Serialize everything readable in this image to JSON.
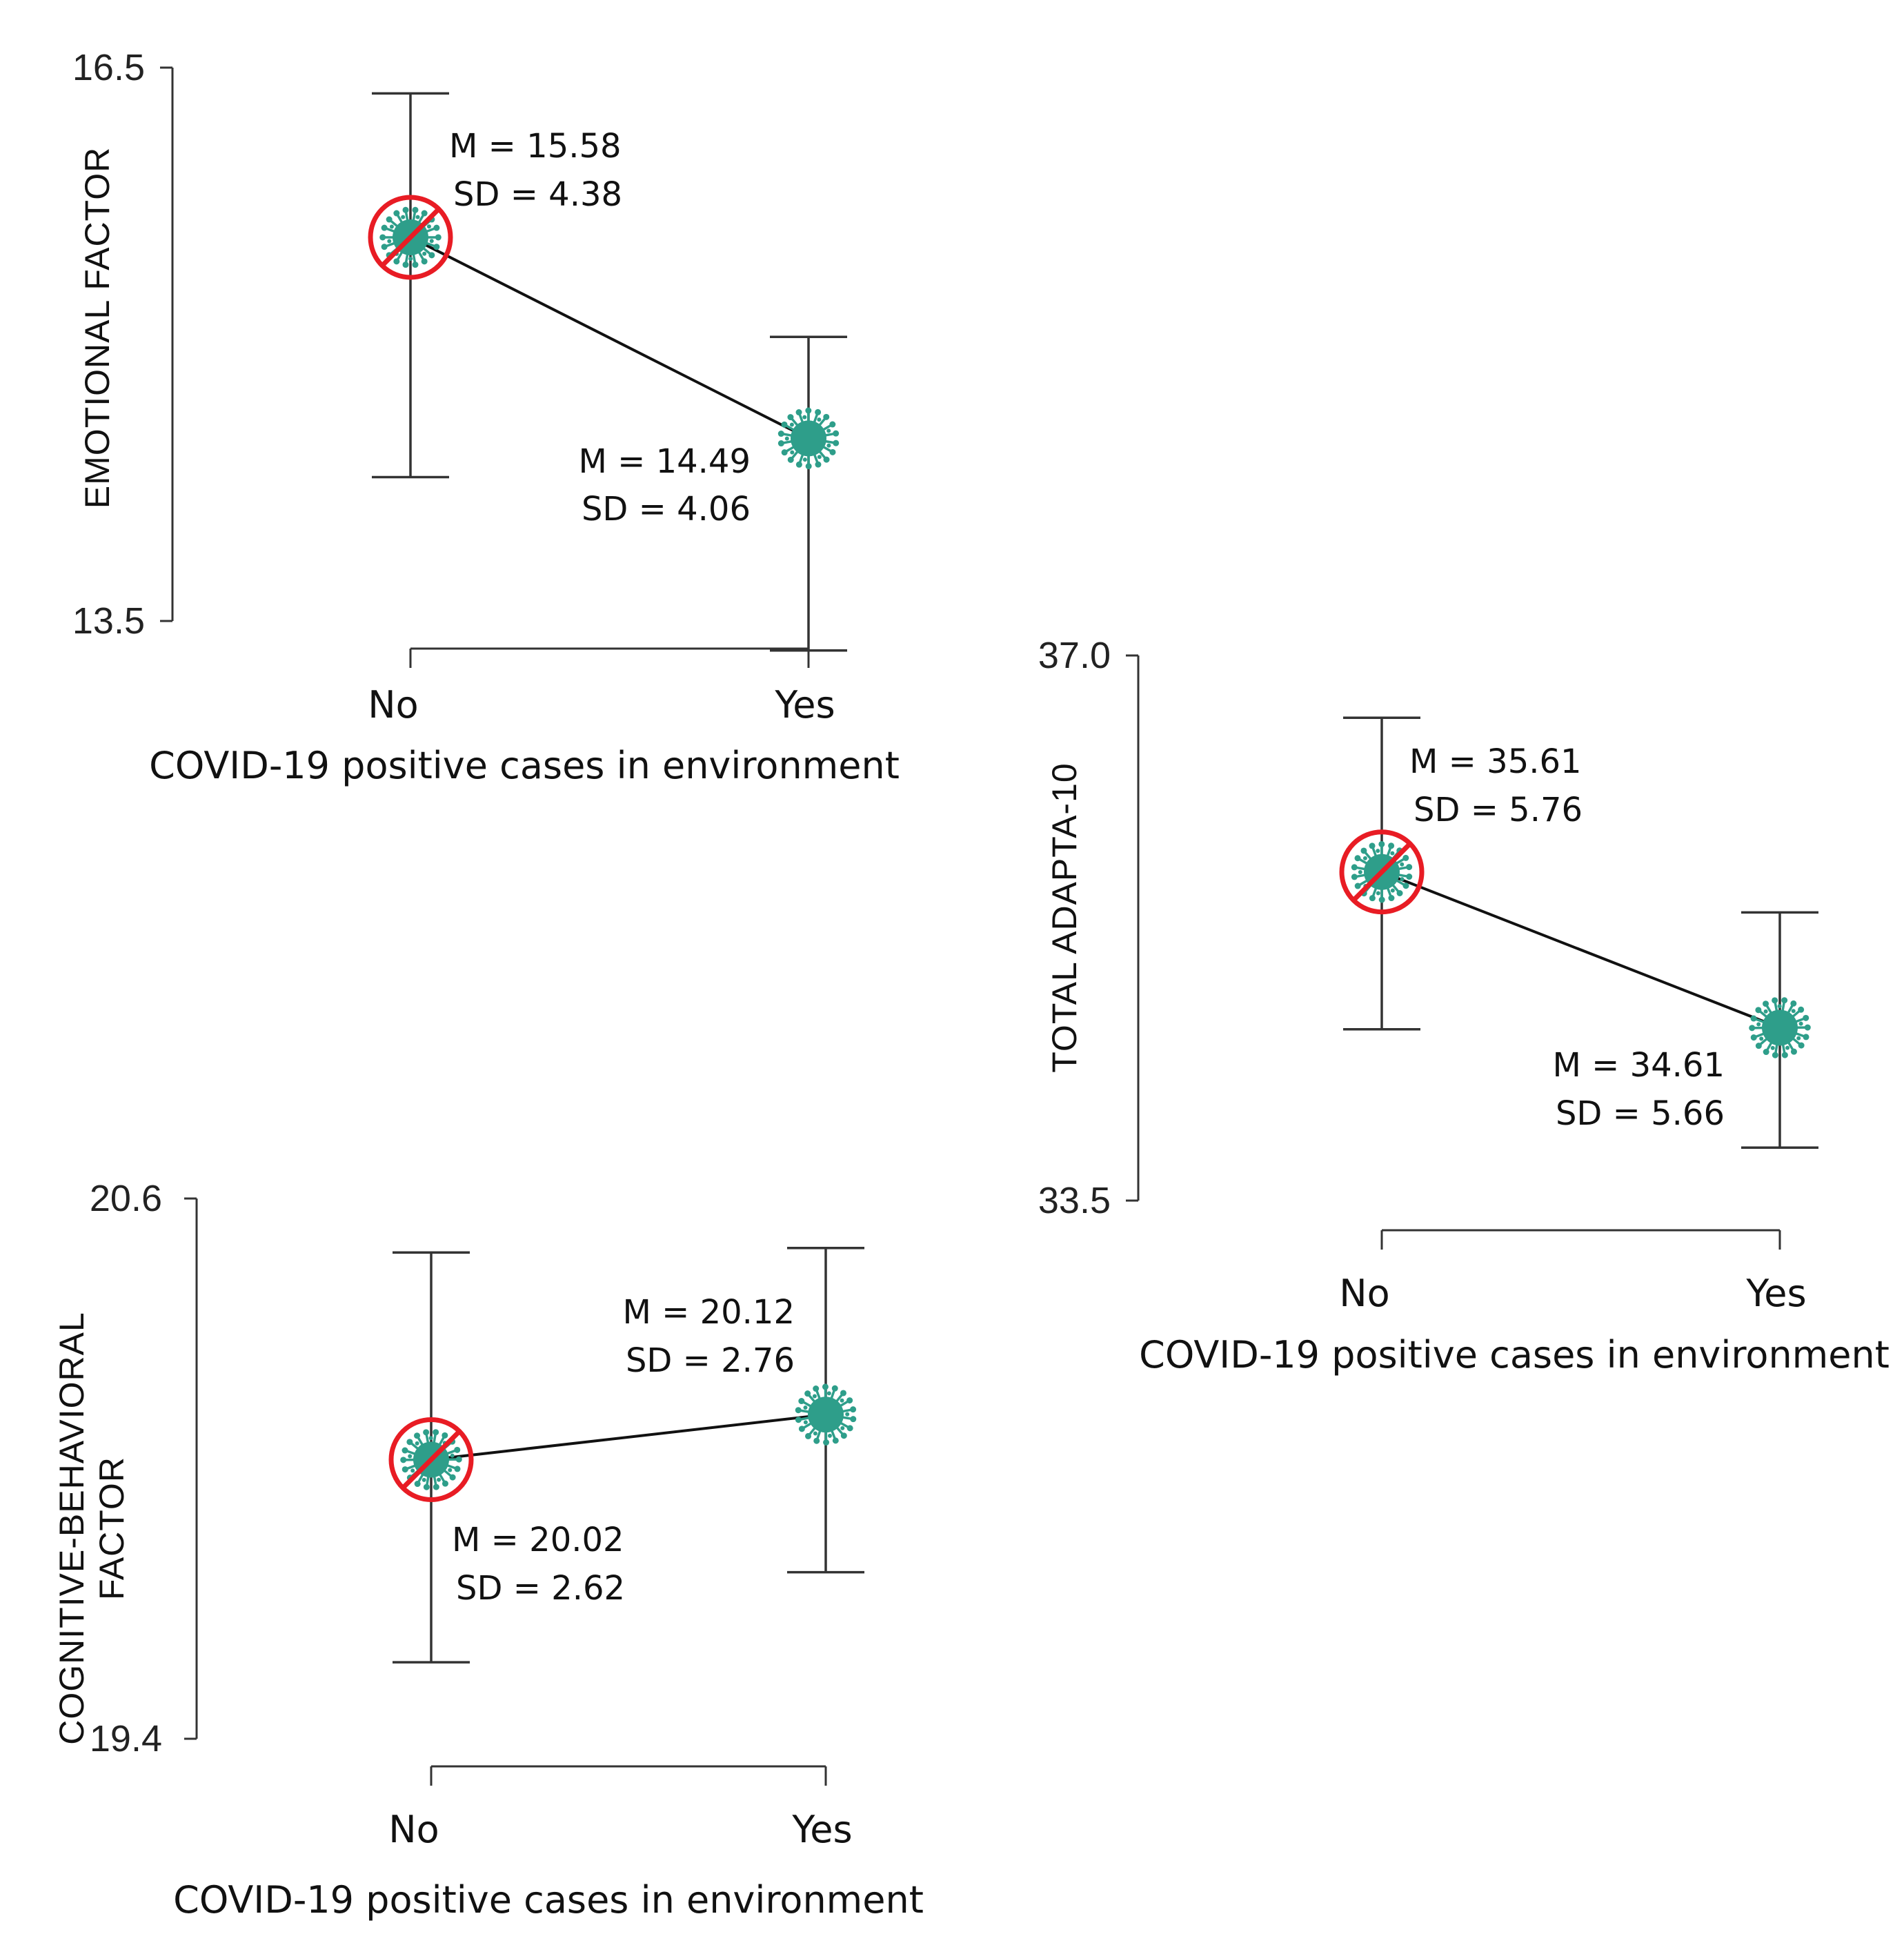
{
  "chart_data": [
    {
      "type": "line",
      "id": "emotional",
      "ylabel": [
        "EMOTIONAL FACTOR"
      ],
      "xlabel": "COVID-19 positive cases in environment",
      "categories": [
        "No",
        "Yes"
      ],
      "ylim": [
        13.5,
        16.5
      ],
      "ytick_labels": [
        "13.5",
        "16.5"
      ],
      "means": [
        15.58,
        14.49
      ],
      "error_bar_lower": [
        14.28,
        13.34
      ],
      "error_bar_upper": [
        16.36,
        15.04
      ],
      "point_labels": [
        {
          "m": "M = 15.58",
          "sd": "SD = 4.38"
        },
        {
          "m": "M = 14.49",
          "sd": "SD = 4.06"
        }
      ],
      "markers": [
        "crossed-virus-icon",
        "virus-icon"
      ]
    },
    {
      "type": "line",
      "id": "total",
      "ylabel": [
        "TOTAL  ADAPTA-10"
      ],
      "xlabel": "COVID-19 positive cases in environment",
      "categories": [
        "No",
        "Yes"
      ],
      "ylim": [
        33.5,
        37.0
      ],
      "ytick_labels": [
        "33.5",
        "37.0"
      ],
      "means": [
        35.61,
        34.61
      ],
      "error_bar_lower": [
        34.6,
        33.84
      ],
      "error_bar_upper": [
        36.6,
        35.35
      ],
      "point_labels": [
        {
          "m": "M = 35.61",
          "sd": "SD = 5.76"
        },
        {
          "m": "M = 34.61",
          "sd": "SD = 5.66"
        }
      ],
      "markers": [
        "crossed-virus-icon",
        "virus-icon"
      ]
    },
    {
      "type": "line",
      "id": "cognitive",
      "ylabel": [
        "COGNITIVE-BEHAVIORAL",
        "FACTOR"
      ],
      "xlabel": "COVID-19 positive cases in environment",
      "categories": [
        "No",
        "Yes"
      ],
      "ylim": [
        19.4,
        20.6
      ],
      "ytick_labels": [
        "19.4",
        "20.6"
      ],
      "means": [
        20.02,
        20.12
      ],
      "error_bar_lower": [
        19.57,
        19.77
      ],
      "error_bar_upper": [
        20.48,
        20.49
      ],
      "point_labels": [
        {
          "m": "M = 20.02",
          "sd": "SD = 2.62"
        },
        {
          "m": "M = 20.12",
          "sd": "SD = 2.76"
        }
      ],
      "markers": [
        "crossed-virus-icon",
        "virus-icon"
      ]
    }
  ],
  "colors": {
    "virus": "#2e9e8a",
    "no_symbol": "#e81c24",
    "line": "#111111"
  }
}
